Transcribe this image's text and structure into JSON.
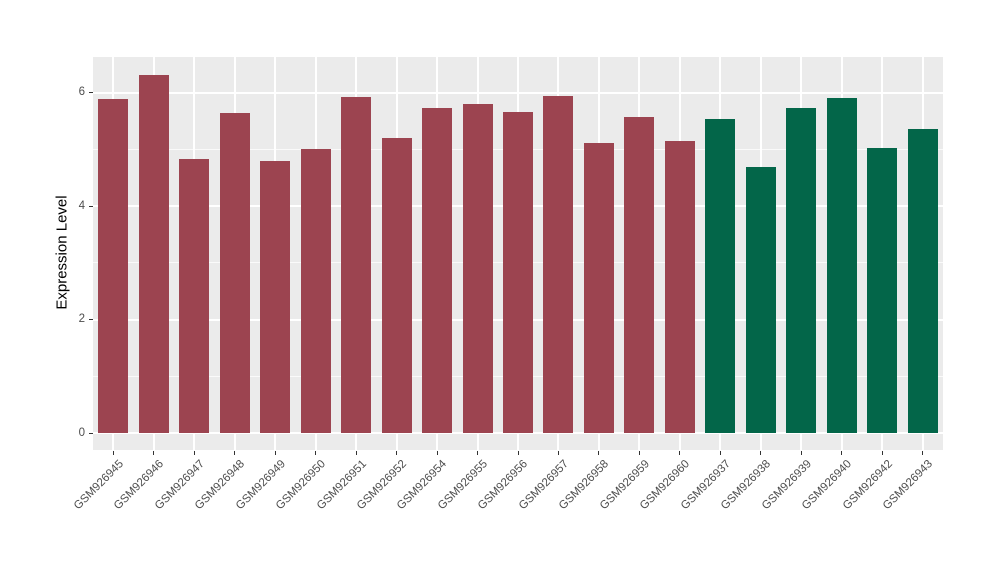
{
  "figure": {
    "background": "#FFFFFF",
    "panel_background": "#EBEBEB",
    "gridline_color": "#FFFFFF",
    "axis_tick_color": "#333333",
    "tick_label_color": "#4D4D4D",
    "axis_title_color": "#000000"
  },
  "chart_data": {
    "type": "bar",
    "title": "",
    "xlabel": "",
    "ylabel": "Expression Level",
    "ylim": [
      0,
      6.64
    ],
    "yticks": [
      0,
      2,
      4,
      6
    ],
    "grid": "major white + minor white on gray panel, vertical major at category centers",
    "legend_position": "none",
    "group_colors": {
      "group1": "#9C4450",
      "group2": "#036649"
    },
    "bars": [
      {
        "label": "GSM926945",
        "value": 5.89,
        "group": "group1"
      },
      {
        "label": "GSM926946",
        "value": 6.32,
        "group": "group1"
      },
      {
        "label": "GSM926947",
        "value": 4.84,
        "group": "group1"
      },
      {
        "label": "GSM926948",
        "value": 5.65,
        "group": "group1"
      },
      {
        "label": "GSM926949",
        "value": 4.8,
        "group": "group1"
      },
      {
        "label": "GSM926950",
        "value": 5.01,
        "group": "group1"
      },
      {
        "label": "GSM926951",
        "value": 5.93,
        "group": "group1"
      },
      {
        "label": "GSM926952",
        "value": 5.21,
        "group": "group1"
      },
      {
        "label": "GSM926954",
        "value": 5.74,
        "group": "group1"
      },
      {
        "label": "GSM926955",
        "value": 5.81,
        "group": "group1"
      },
      {
        "label": "GSM926956",
        "value": 5.67,
        "group": "group1"
      },
      {
        "label": "GSM926957",
        "value": 5.95,
        "group": "group1"
      },
      {
        "label": "GSM926958",
        "value": 5.11,
        "group": "group1"
      },
      {
        "label": "GSM926959",
        "value": 5.57,
        "group": "group1"
      },
      {
        "label": "GSM926960",
        "value": 5.15,
        "group": "group1"
      },
      {
        "label": "GSM926937",
        "value": 5.54,
        "group": "group2"
      },
      {
        "label": "GSM926938",
        "value": 4.69,
        "group": "group2"
      },
      {
        "label": "GSM926939",
        "value": 5.74,
        "group": "group2"
      },
      {
        "label": "GSM926940",
        "value": 5.91,
        "group": "group2"
      },
      {
        "label": "GSM926942",
        "value": 5.03,
        "group": "group2"
      },
      {
        "label": "GSM926943",
        "value": 5.37,
        "group": "group2"
      }
    ]
  }
}
